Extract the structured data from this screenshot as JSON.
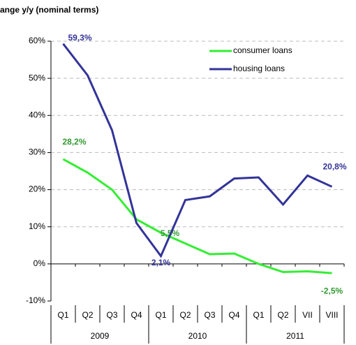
{
  "chart_data": {
    "type": "line",
    "title": "ange y/y (nominal terms)",
    "categories": [
      "Q1",
      "Q2",
      "Q3",
      "Q4",
      "Q1",
      "Q2",
      "Q3",
      "Q4",
      "Q1",
      "Q2",
      "VII",
      "VIII"
    ],
    "groups": [
      {
        "name": "2009",
        "size": 4
      },
      {
        "name": "2010",
        "size": 4
      },
      {
        "name": "2011",
        "size": 4
      }
    ],
    "series": [
      {
        "name": "consumer loans",
        "color": "#33ee33",
        "label_color": "#339933",
        "values": [
          28.2,
          24.6,
          20.0,
          12.0,
          8.4,
          5.5,
          2.6,
          2.8,
          0.0,
          -2.2,
          -2.0,
          -2.5
        ],
        "value_labels": [
          "28,2%",
          null,
          null,
          null,
          null,
          "5,5%",
          null,
          null,
          null,
          null,
          null,
          "-2,5%"
        ]
      },
      {
        "name": "housing loans",
        "color": "#333399",
        "label_color": "#333399",
        "values": [
          59.3,
          50.8,
          36.0,
          11.0,
          2.1,
          17.2,
          18.2,
          23.0,
          23.3,
          16.0,
          23.8,
          20.8
        ],
        "value_labels": [
          "59,3%",
          null,
          null,
          null,
          "2,1%",
          null,
          null,
          null,
          null,
          null,
          null,
          "20,8%"
        ]
      }
    ],
    "ylim": [
      -10,
      60
    ],
    "yticks": [
      {
        "value": -10,
        "label": "-10%"
      },
      {
        "value": 0,
        "label": "0%"
      },
      {
        "value": 10,
        "label": "10%"
      },
      {
        "value": 20,
        "label": "20%"
      },
      {
        "value": 30,
        "label": "30%"
      },
      {
        "value": 40,
        "label": "40%"
      },
      {
        "value": 50,
        "label": "50%"
      },
      {
        "value": 60,
        "label": "60%"
      }
    ],
    "grid": true
  }
}
